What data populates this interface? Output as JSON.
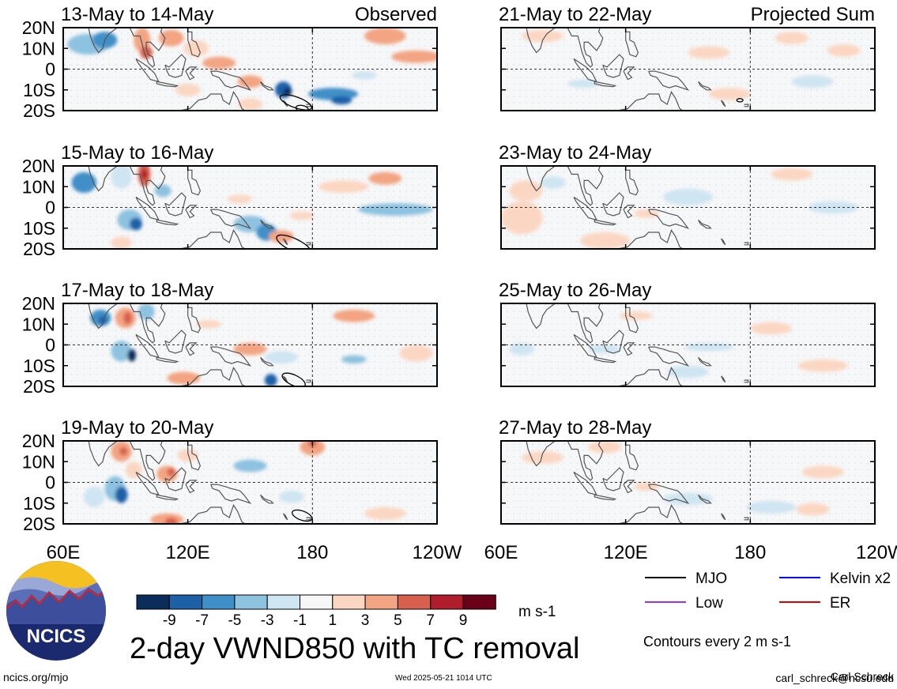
{
  "chart_data": {
    "type": "heatmap",
    "title": "2-day VWND850 with TC removal",
    "variable": "VWND850",
    "units": "m s-1",
    "columns": [
      {
        "header": "Observed",
        "panels": [
          {
            "title": "13-May to 14-May"
          },
          {
            "title": "15-May to 16-May"
          },
          {
            "title": "17-May to 18-May"
          },
          {
            "title": "19-May to 20-May"
          }
        ]
      },
      {
        "header": "Projected Sum",
        "panels": [
          {
            "title": "21-May to 22-May"
          },
          {
            "title": "23-May to 24-May"
          },
          {
            "title": "25-May to 26-May"
          },
          {
            "title": "27-May to 28-May"
          }
        ]
      }
    ],
    "y_ticks": [
      "20N",
      "10N",
      "0",
      "10S",
      "20S"
    ],
    "y_values": [
      20,
      10,
      0,
      -10,
      -20
    ],
    "x_ticks_left": [
      "60E",
      "120E",
      "180",
      "120W"
    ],
    "x_ticks_right": [
      "60E",
      "120E",
      "180",
      "120W"
    ],
    "x_values": [
      60,
      120,
      180,
      240
    ],
    "xlim": [
      60,
      240
    ],
    "ylim": [
      -20,
      20
    ],
    "colorbar": {
      "levels": [
        "-9",
        "-7",
        "-5",
        "-3",
        "-1",
        "1",
        "3",
        "5",
        "7",
        "9"
      ],
      "colors": [
        "#0a2d5c",
        "#1d60a8",
        "#3f8fc8",
        "#8dc2e0",
        "#cfe5f2",
        "#f7f7f7",
        "#fbd7c3",
        "#f3a482",
        "#d8604e",
        "#b01d2c",
        "#6b0119"
      ]
    },
    "legend": [
      {
        "label": "MJO",
        "color": "#000000"
      },
      {
        "label": "Kelvin x2",
        "color": "#0000ff"
      },
      {
        "label": "Low",
        "color": "#a030f0"
      },
      {
        "label": "ER",
        "color": "#e00000"
      }
    ],
    "contour_note": "Contours every 2 m s-1"
  },
  "footer": {
    "logo_text": "NCICS",
    "url": "ncics.org/mjo",
    "timestamp": "Wed 2025-05-21 1014 UTC",
    "author": "Carl Schreck",
    "email": "carl_schreck@ncsu.edu"
  }
}
